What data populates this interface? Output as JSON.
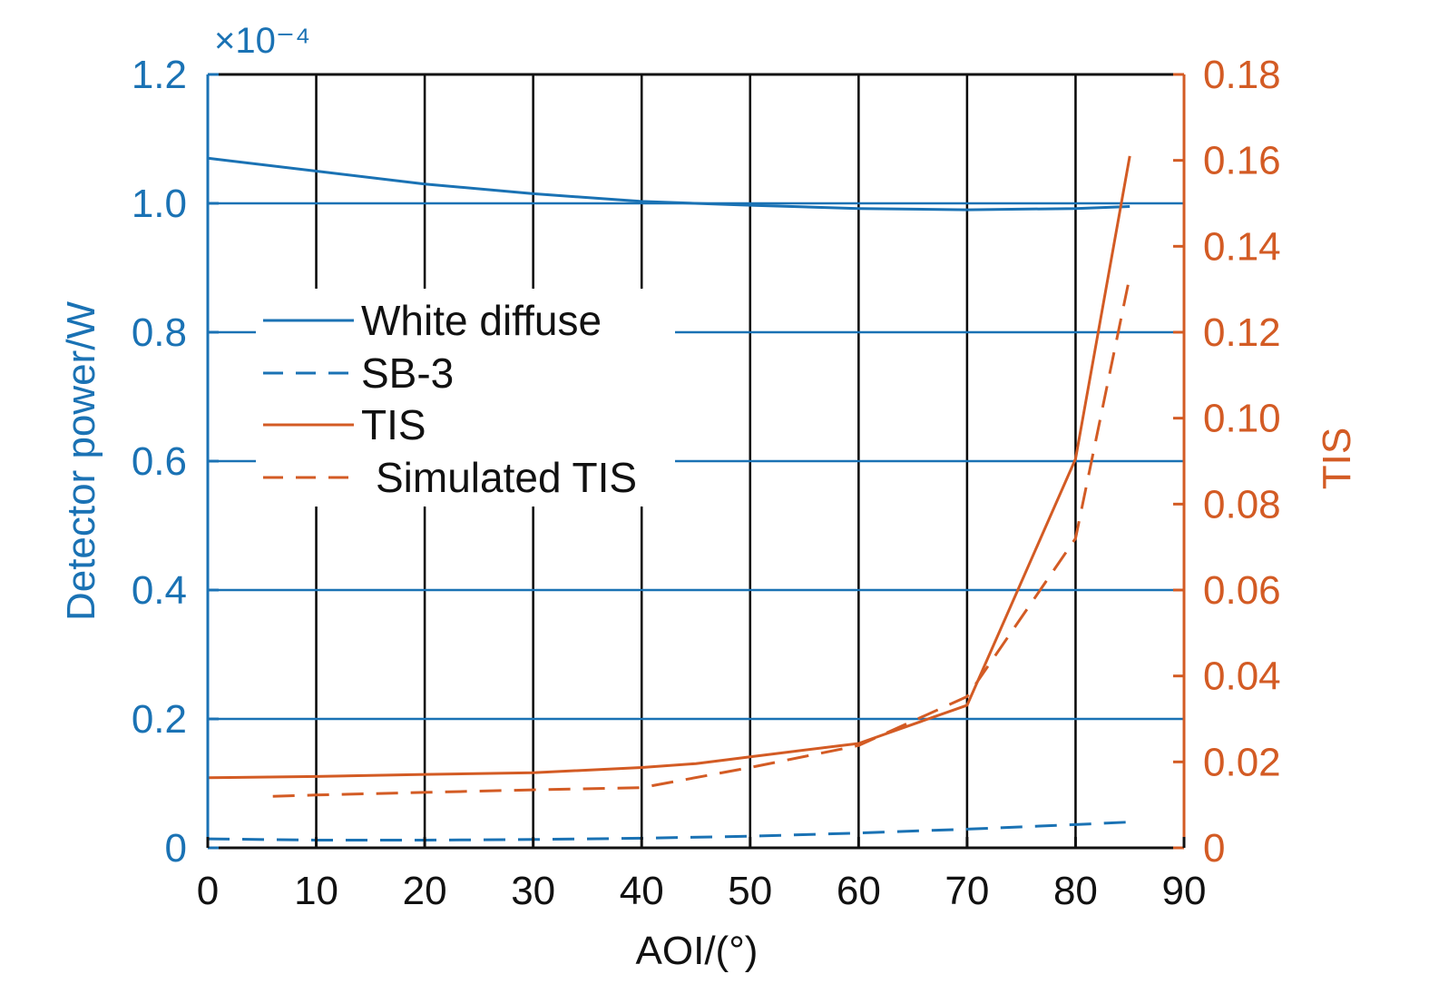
{
  "chart_data": {
    "type": "line",
    "xlabel": "AOI/(°)",
    "ylabel_left": "Detector power/W",
    "ylabel_right": "TIS",
    "left_exponent_label": "×10⁻⁴",
    "xlim": [
      0,
      90
    ],
    "ylim_left": [
      0,
      1.2
    ],
    "ylim_right": [
      0,
      0.18
    ],
    "x_ticks": [
      "0",
      "10",
      "20",
      "30",
      "40",
      "50",
      "60",
      "70",
      "80",
      "90"
    ],
    "left_ticks": [
      "0",
      "0.2",
      "0.4",
      "0.6",
      "0.8",
      "1.0",
      "1.2"
    ],
    "right_ticks": [
      "0",
      "0.02",
      "0.04",
      "0.06",
      "0.08",
      "0.10",
      "0.12",
      "0.14",
      "0.16",
      "0.18"
    ],
    "grid": {
      "vertical": true,
      "horizontal": true
    },
    "legend_position": "center-left",
    "colors": {
      "left_axis": "#1a72b4",
      "right_axis": "#d35b24",
      "grid_vertical": "#000000"
    },
    "series": [
      {
        "name": "White diffuse",
        "axis": "left",
        "style": "solid",
        "color": "#1a72b4",
        "x": [
          0,
          10,
          20,
          30,
          40,
          50,
          60,
          70,
          80,
          85
        ],
        "y": [
          1.07,
          1.05,
          1.03,
          1.015,
          1.003,
          0.997,
          0.992,
          0.99,
          0.992,
          0.995
        ]
      },
      {
        "name": "SB-3",
        "axis": "left",
        "style": "dashed",
        "color": "#1a72b4",
        "x": [
          0,
          10,
          20,
          30,
          40,
          50,
          60,
          70,
          80,
          85
        ],
        "y": [
          0.014,
          0.012,
          0.012,
          0.013,
          0.015,
          0.018,
          0.023,
          0.029,
          0.036,
          0.04
        ]
      },
      {
        "name": "TIS",
        "axis": "right",
        "style": "solid",
        "color": "#d35b24",
        "x": [
          0,
          10,
          20,
          30,
          40,
          45,
          50,
          60,
          70,
          80,
          85
        ],
        "y": [
          0.0163,
          0.0166,
          0.0171,
          0.0175,
          0.0187,
          0.0196,
          0.0212,
          0.0243,
          0.0332,
          0.0905,
          0.161
        ]
      },
      {
        "name": "Simulated TIS",
        "axis": "right",
        "style": "dashed",
        "color": "#d35b24",
        "x": [
          6,
          10,
          20,
          30,
          40,
          50,
          60,
          70,
          80,
          85
        ],
        "y": [
          0.012,
          0.0123,
          0.0129,
          0.0135,
          0.014,
          0.0187,
          0.0238,
          0.0352,
          0.072,
          0.133
        ]
      }
    ]
  }
}
